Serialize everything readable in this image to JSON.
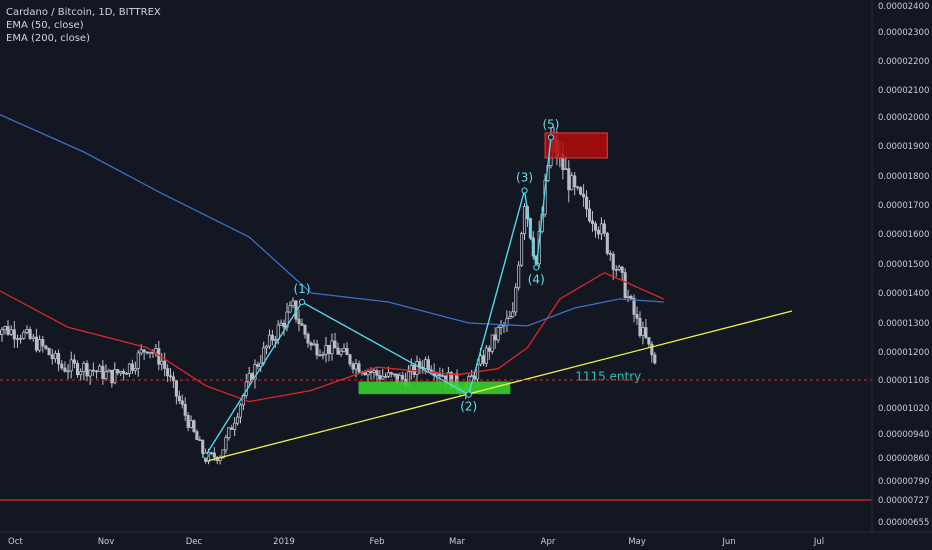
{
  "header": {
    "symbol_line": "Cardano / Bitcoin, 1D, BITTREX",
    "indicators": [
      "EMA (50, close)",
      "EMA (200, close)"
    ]
  },
  "colors": {
    "background": "#131722",
    "candle_up": "#c9cdd6",
    "candle_down": "#b8bcc6",
    "ema50": "#e0262a",
    "ema200": "#3b6fc8",
    "wave": "#4fd9e8",
    "trendline": "#f2f24a",
    "target_zone": "#b30a0a",
    "support_zone": "#37d12c",
    "price_line": "#e0262a",
    "note": "#24c3b3"
  },
  "chart_data": {
    "type": "candlestick",
    "x_axis_labels": [
      "Oct",
      "Nov",
      "Dec",
      "2019",
      "Feb",
      "Mar",
      "Apr",
      "May",
      "Jun",
      "Jul"
    ],
    "y_axis_labels": [
      "0.00002400",
      "0.00002300",
      "0.00002200",
      "0.00002100",
      "0.00002000",
      "0.00001900",
      "0.00001800",
      "0.00001700",
      "0.00001600",
      "0.00001500",
      "0.00001400",
      "0.00001300",
      "0.00001200",
      "0.00001108",
      "0.00001020",
      "0.00000940",
      "0.00000860",
      "0.00000790",
      "0.00000727",
      "0.00000655"
    ],
    "price_tags": [
      {
        "label": "0.00001108",
        "value": 1.108e-05
      },
      {
        "label": "0.00000727",
        "value": 7.27e-06
      }
    ],
    "close_path": [
      {
        "date": "2018-09-26",
        "close": 1.29e-05
      },
      {
        "date": "2018-10-05",
        "close": 1.265e-05
      },
      {
        "date": "2018-10-12",
        "close": 1.215e-05
      },
      {
        "date": "2018-10-18",
        "close": 1.15e-05
      },
      {
        "date": "2018-10-25",
        "close": 1.15e-05
      },
      {
        "date": "2018-11-03",
        "close": 1.12e-05
      },
      {
        "date": "2018-11-10",
        "close": 1.16e-05
      },
      {
        "date": "2018-11-15",
        "close": 1.22e-05
      },
      {
        "date": "2018-11-20",
        "close": 1.17e-05
      },
      {
        "date": "2018-11-25",
        "close": 1.06e-05
      },
      {
        "date": "2018-11-30",
        "close": 9.6e-06
      },
      {
        "date": "2018-12-05",
        "close": 8.6e-06
      },
      {
        "date": "2018-12-10",
        "close": 8.7e-06
      },
      {
        "date": "2018-12-15",
        "close": 9.9e-06
      },
      {
        "date": "2018-12-21",
        "close": 1.13e-05
      },
      {
        "date": "2018-12-28",
        "close": 1.25e-05
      },
      {
        "date": "2019-01-04",
        "close": 1.35e-05
      },
      {
        "date": "2019-01-10",
        "close": 1.22e-05
      },
      {
        "date": "2019-01-18",
        "close": 1.21e-05
      },
      {
        "date": "2019-01-25",
        "close": 1.16e-05
      },
      {
        "date": "2019-02-01",
        "close": 1.125e-05
      },
      {
        "date": "2019-02-10",
        "close": 1.11e-05
      },
      {
        "date": "2019-02-18",
        "close": 1.17e-05
      },
      {
        "date": "2019-02-25",
        "close": 1.12e-05
      },
      {
        "date": "2019-03-04",
        "close": 1.08e-05
      },
      {
        "date": "2019-03-10",
        "close": 1.18e-05
      },
      {
        "date": "2019-03-15",
        "close": 1.27e-05
      },
      {
        "date": "2019-03-20",
        "close": 1.32e-05
      },
      {
        "date": "2019-03-24",
        "close": 1.72e-05
      },
      {
        "date": "2019-03-28",
        "close": 1.5e-05
      },
      {
        "date": "2019-04-02",
        "close": 1.92e-05
      },
      {
        "date": "2019-04-10",
        "close": 1.74e-05
      },
      {
        "date": "2019-04-17",
        "close": 1.65e-05
      },
      {
        "date": "2019-04-22",
        "close": 1.54e-05
      },
      {
        "date": "2019-04-26",
        "close": 1.44e-05
      },
      {
        "date": "2019-05-01",
        "close": 1.3e-05
      },
      {
        "date": "2019-05-04",
        "close": 1.24e-05
      },
      {
        "date": "2019-05-07",
        "close": 1.16e-05
      }
    ],
    "series": [
      {
        "name": "EMA (50, close)",
        "points": [
          {
            "date": "2018-09-26",
            "value": 1.42e-05
          },
          {
            "date": "2018-10-20",
            "value": 1.285e-05
          },
          {
            "date": "2018-11-15",
            "value": 1.215e-05
          },
          {
            "date": "2018-12-05",
            "value": 1.09e-05
          },
          {
            "date": "2018-12-20",
            "value": 1.04e-05
          },
          {
            "date": "2019-01-10",
            "value": 1.075e-05
          },
          {
            "date": "2019-02-01",
            "value": 1.15e-05
          },
          {
            "date": "2019-03-01",
            "value": 1.125e-05
          },
          {
            "date": "2019-03-15",
            "value": 1.145e-05
          },
          {
            "date": "2019-03-25",
            "value": 1.215e-05
          },
          {
            "date": "2019-04-05",
            "value": 1.38e-05
          },
          {
            "date": "2019-04-20",
            "value": 1.47e-05
          },
          {
            "date": "2019-05-01",
            "value": 1.42e-05
          },
          {
            "date": "2019-05-10",
            "value": 1.38e-05
          }
        ]
      },
      {
        "name": "EMA (200, close)",
        "points": [
          {
            "date": "2018-09-26",
            "value": 2.02e-05
          },
          {
            "date": "2018-10-25",
            "value": 1.88e-05
          },
          {
            "date": "2018-11-20",
            "value": 1.74e-05
          },
          {
            "date": "2018-12-20",
            "value": 1.59e-05
          },
          {
            "date": "2019-01-10",
            "value": 1.4e-05
          },
          {
            "date": "2019-02-05",
            "value": 1.37e-05
          },
          {
            "date": "2019-03-05",
            "value": 1.3e-05
          },
          {
            "date": "2019-03-25",
            "value": 1.29e-05
          },
          {
            "date": "2019-04-10",
            "value": 1.35e-05
          },
          {
            "date": "2019-04-25",
            "value": 1.38e-05
          },
          {
            "date": "2019-05-10",
            "value": 1.37e-05
          }
        ]
      }
    ],
    "annotations": {
      "wave_points": [
        {
          "label": "",
          "date": "2018-12-05",
          "value": 8.68e-06
        },
        {
          "label": "(1)",
          "date": "2019-01-07",
          "value": 1.37e-05
        },
        {
          "label": "(2)",
          "date": "2019-03-05",
          "value": 1.062e-05
        },
        {
          "label": "(3)",
          "date": "2019-03-24",
          "value": 1.75e-05
        },
        {
          "label": "(4)",
          "date": "2019-03-28",
          "value": 1.488e-05
        },
        {
          "label": "(5)",
          "date": "2019-04-02",
          "value": 1.93e-05
        }
      ],
      "trendline": [
        {
          "date": "2018-12-06",
          "value": 8.52e-06
        },
        {
          "date": "2019-06-22",
          "value": 1.34e-05
        }
      ],
      "resistance_zone": {
        "date_from": "2019-03-31",
        "date_to": "2019-04-21",
        "value_low": 1.86e-05,
        "value_high": 1.945e-05
      },
      "support_zone": {
        "date_from": "2019-01-26",
        "date_to": "2019-03-19",
        "value_low": 1.065e-05,
        "value_high": 1.102e-05
      },
      "price_lines": [
        1.108e-05,
        7.27e-06
      ],
      "text_note": {
        "text": "1115 entry",
        "date": "2019-04-25",
        "value": 1.12e-05
      }
    },
    "grid": false
  }
}
